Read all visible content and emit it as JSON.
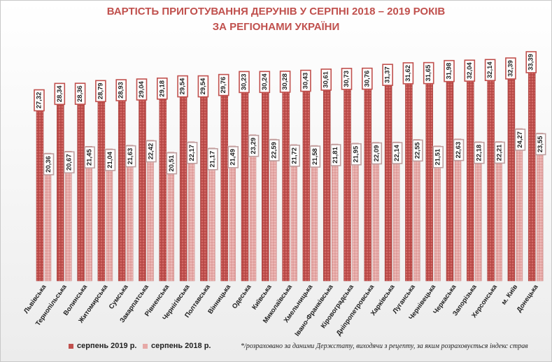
{
  "title_line1": "ВАРТІСТЬ ПРИГОТУВАННЯ ДЕРУНІВ У СЕРПНІ 2018 – 2019 РОКІВ",
  "title_line2": "ЗА РЕГІОНАМИ УКРАЇНИ",
  "footnote": "*/розраховано  за даними Держстату, виходячи з рецепту, за яким розраховується індекс  страв",
  "colors": {
    "series_2019": "#c0504d",
    "series_2018": "#e6a9a7",
    "title": "#c0504d"
  },
  "chart_data": {
    "type": "bar",
    "categories": [
      "Львівська",
      "Тернопільська",
      "Волинська",
      "Житомирська",
      "Сумська",
      "Закарпатська",
      "Рівненська",
      "Чернігівська",
      "Полтавська",
      "Вінницька",
      "Одеська",
      "Київська",
      "Миколаївська",
      "Хмельницька",
      "Івано-Франківська",
      "Кіровоградська",
      "Дніпропетровська",
      "Харківська",
      "Луганська",
      "Чернівецька",
      "Черкаська",
      "Запорізька",
      "Херсонська",
      "м. Київ",
      "Донецька"
    ],
    "series": [
      {
        "name": "серпень 2019 р.",
        "values": [
          27.32,
          28.34,
          28.36,
          28.79,
          28.93,
          29.04,
          29.18,
          29.54,
          29.54,
          29.76,
          30.23,
          30.24,
          30.28,
          30.43,
          30.61,
          30.73,
          30.76,
          31.37,
          31.62,
          31.65,
          31.98,
          32.04,
          32.14,
          32.39,
          33.39
        ]
      },
      {
        "name": "серпень 2018 р.",
        "values": [
          20.36,
          20.67,
          21.45,
          21.04,
          21.63,
          22.42,
          20.51,
          22.17,
          21.17,
          21.49,
          23.29,
          22.59,
          21.72,
          21.58,
          21.81,
          21.95,
          22.09,
          22.14,
          22.55,
          21.51,
          22.63,
          22.18,
          22.21,
          24.27,
          23.55
        ]
      }
    ],
    "value_labels": {
      "2019": [
        "27,32",
        "28,34",
        "28,36",
        "28,79",
        "28,93",
        "29,04",
        "29,18",
        "29,54",
        "29,54",
        "29,76",
        "30,23",
        "30,24",
        "30,28",
        "30,43",
        "30,61",
        "30,73",
        "30,76",
        "31,37",
        "31,62",
        "31,65",
        "31,98",
        "32,04",
        "32,14",
        "32,39",
        "33,39"
      ],
      "2018": [
        "20,36",
        "20,67",
        "21,45",
        "21,04",
        "21,63",
        "22,42",
        "20,51",
        "22,17",
        "21,17",
        "21,49",
        "23,29",
        "22,59",
        "21,72",
        "21,58",
        "21,81",
        "21,95",
        "22,09",
        "22,14",
        "22,55",
        "21,51",
        "22,63",
        "22,18",
        "22,21",
        "24,27",
        "23,55"
      ]
    },
    "ylim": [
      0,
      34.5
    ],
    "grid": false,
    "legend_position": "bottom-left"
  }
}
